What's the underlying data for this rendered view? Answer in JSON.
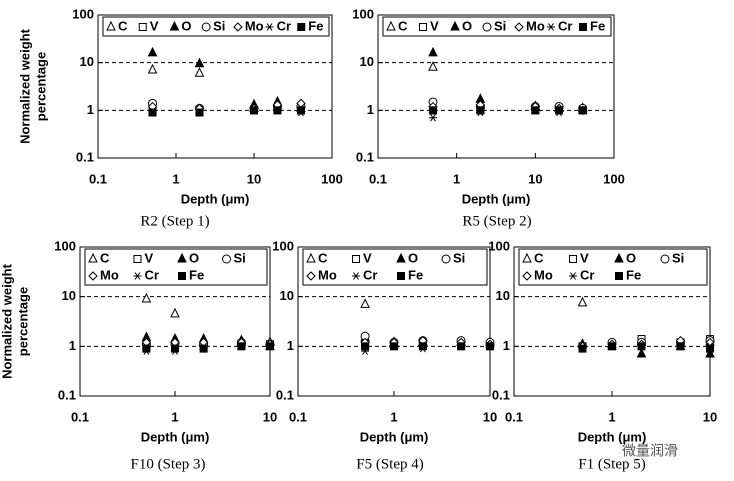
{
  "chart_data": [
    {
      "type": "scatter",
      "caption": "R2 (Step 1)",
      "xlabel": "Depth (μm)",
      "ylabel": [
        "Normalized weight",
        "percentage"
      ],
      "log_x": true,
      "log_y": true,
      "xlim": [
        0.1,
        100
      ],
      "ylim": [
        0.1,
        100
      ],
      "xticks": [
        0.1,
        1,
        10,
        100
      ],
      "yticks": [
        0.1,
        1,
        10,
        100
      ],
      "reference_lines": [
        1,
        10
      ],
      "x": [
        0.5,
        2,
        10,
        20,
        40
      ],
      "series": [
        {
          "name": "C",
          "color": "#000000",
          "marker": "triangle-open",
          "values": [
            7,
            6,
            1.1,
            1.2,
            1.1
          ]
        },
        {
          "name": "V",
          "color": "#000000",
          "marker": "square-open",
          "values": [
            1,
            1,
            1,
            1,
            1
          ]
        },
        {
          "name": "O",
          "color": "#000000",
          "marker": "triangle-filled",
          "values": [
            16,
            9.5,
            1.3,
            1.5,
            1.3
          ]
        },
        {
          "name": "Si",
          "color": "#000000",
          "marker": "circle-open",
          "values": [
            1.4,
            1.1,
            1.1,
            1.2,
            1.2
          ]
        },
        {
          "name": "Mo",
          "color": "#000000",
          "marker": "diamond-open",
          "values": [
            1.2,
            1.1,
            1.1,
            1.3,
            1.4
          ]
        },
        {
          "name": "Cr",
          "color": "#000000",
          "marker": "asterisk",
          "values": [
            0.9,
            0.9,
            1,
            1,
            0.9
          ]
        },
        {
          "name": "Fe",
          "color": "#000000",
          "marker": "square-filled",
          "values": [
            0.9,
            0.9,
            1,
            1,
            1
          ]
        }
      ]
    },
    {
      "type": "scatter",
      "caption": "R5 (Step 2)",
      "xlabel": "Depth (μm)",
      "log_x": true,
      "log_y": true,
      "xlim": [
        0.1,
        100
      ],
      "ylim": [
        0.1,
        100
      ],
      "xticks": [
        0.1,
        1,
        10,
        100
      ],
      "yticks": [
        0.1,
        1,
        10,
        100
      ],
      "reference_lines": [
        1,
        10
      ],
      "x": [
        0.5,
        2,
        10,
        20,
        40
      ],
      "series": [
        {
          "name": "C",
          "color": "#000000",
          "marker": "triangle-open",
          "values": [
            8,
            1.3,
            1.2,
            1.1,
            1
          ]
        },
        {
          "name": "V",
          "color": "#000000",
          "marker": "square-open",
          "values": [
            1,
            1,
            1,
            1,
            1
          ]
        },
        {
          "name": "O",
          "color": "#000000",
          "marker": "triangle-filled",
          "values": [
            16,
            1.7,
            1.2,
            1.1,
            1.1
          ]
        },
        {
          "name": "Si",
          "color": "#000000",
          "marker": "circle-open",
          "values": [
            1.5,
            1.2,
            1.2,
            1.2,
            1.1
          ]
        },
        {
          "name": "Mo",
          "color": "#000000",
          "marker": "diamond-open",
          "values": [
            1.2,
            1.3,
            1.2,
            1.1,
            1
          ]
        },
        {
          "name": "Cr",
          "color": "#000000",
          "marker": "asterisk",
          "values": [
            0.7,
            0.9,
            1,
            0.9,
            1
          ]
        },
        {
          "name": "Fe",
          "color": "#000000",
          "marker": "square-filled",
          "values": [
            1,
            1,
            1,
            1,
            1
          ]
        }
      ]
    },
    {
      "type": "scatter",
      "caption": "F10 (Step 3)",
      "xlabel": "Depth (μm)",
      "ylabel": [
        "Normalized weight",
        "percentage"
      ],
      "log_x": true,
      "log_y": true,
      "xlim": [
        0.1,
        10
      ],
      "ylim": [
        0.1,
        100
      ],
      "xticks": [
        0.1,
        1,
        10
      ],
      "yticks": [
        0.1,
        1,
        10,
        100
      ],
      "reference_lines": [
        1,
        10
      ],
      "x": [
        0.5,
        1,
        2,
        5,
        10
      ],
      "series": [
        {
          "name": "C",
          "color": "#000000",
          "marker": "triangle-open",
          "values": [
            9,
            4.5,
            1.2,
            1.2,
            1.2
          ]
        },
        {
          "name": "V",
          "color": "#000000",
          "marker": "square-open",
          "values": [
            1,
            1,
            1,
            1.1,
            1.1
          ]
        },
        {
          "name": "O",
          "color": "#000000",
          "marker": "triangle-filled",
          "values": [
            1.5,
            1.4,
            1.4,
            1.3,
            1
          ]
        },
        {
          "name": "Si",
          "color": "#000000",
          "marker": "circle-open",
          "values": [
            1.1,
            1.1,
            1.1,
            1.2,
            1.1
          ]
        },
        {
          "name": "Mo",
          "color": "#000000",
          "marker": "diamond-open",
          "values": [
            1.2,
            1.2,
            1.2,
            1.2,
            1.1
          ]
        },
        {
          "name": "Cr",
          "color": "#000000",
          "marker": "asterisk",
          "values": [
            0.8,
            0.8,
            0.9,
            1,
            1
          ]
        },
        {
          "name": "Fe",
          "color": "#000000",
          "marker": "square-filled",
          "values": [
            0.9,
            0.9,
            0.9,
            1,
            1
          ]
        }
      ]
    },
    {
      "type": "scatter",
      "caption": "F5 (Step 4)",
      "xlabel": "Depth (μm)",
      "log_x": true,
      "log_y": true,
      "xlim": [
        0.1,
        10
      ],
      "ylim": [
        0.1,
        100
      ],
      "xticks": [
        0.1,
        1,
        10
      ],
      "yticks": [
        0.1,
        1,
        10,
        100
      ],
      "reference_lines": [
        1,
        10
      ],
      "x": [
        0.5,
        1,
        2,
        5,
        10
      ],
      "series": [
        {
          "name": "C",
          "color": "#000000",
          "marker": "triangle-open",
          "values": [
            7,
            1.1,
            1.2,
            1.2,
            1.2
          ]
        },
        {
          "name": "V",
          "color": "#000000",
          "marker": "square-open",
          "values": [
            1.1,
            1.1,
            1.1,
            1.1,
            1.1
          ]
        },
        {
          "name": "O",
          "color": "#000000",
          "marker": "triangle-filled",
          "values": [
            1.5,
            1.2,
            1.2,
            1.2,
            1.1
          ]
        },
        {
          "name": "Si",
          "color": "#000000",
          "marker": "circle-open",
          "values": [
            1.6,
            1.2,
            1.3,
            1.3,
            1.2
          ]
        },
        {
          "name": "Mo",
          "color": "#000000",
          "marker": "diamond-open",
          "values": [
            1.2,
            1.2,
            1.3,
            1.2,
            1.1
          ]
        },
        {
          "name": "Cr",
          "color": "#000000",
          "marker": "asterisk",
          "values": [
            0.8,
            1,
            0.9,
            1,
            1
          ]
        },
        {
          "name": "Fe",
          "color": "#000000",
          "marker": "square-filled",
          "values": [
            1,
            1,
            1,
            1,
            1
          ]
        }
      ]
    },
    {
      "type": "scatter",
      "caption": "F1 (Step 5)",
      "xlabel": "Depth (μm)",
      "log_x": true,
      "log_y": true,
      "xlim": [
        0.1,
        10
      ],
      "ylim": [
        0.1,
        100
      ],
      "xticks": [
        0.1,
        1,
        10
      ],
      "yticks": [
        0.1,
        1,
        10,
        100
      ],
      "reference_lines": [
        1,
        10
      ],
      "x": [
        0.5,
        1,
        2,
        5,
        10
      ],
      "series": [
        {
          "name": "C",
          "color": "#000000",
          "marker": "triangle-open",
          "values": [
            7.5,
            1.1,
            1.2,
            1.2,
            1.2
          ]
        },
        {
          "name": "V",
          "color": "#000000",
          "marker": "square-open",
          "values": [
            1,
            1.1,
            1.4,
            1.2,
            1.4
          ]
        },
        {
          "name": "O",
          "color": "#000000",
          "marker": "triangle-filled",
          "values": [
            1.1,
            1,
            0.7,
            1,
            0.7
          ]
        },
        {
          "name": "Si",
          "color": "#000000",
          "marker": "circle-open",
          "values": [
            1,
            1.2,
            1.2,
            1.2,
            1.3
          ]
        },
        {
          "name": "Mo",
          "color": "#000000",
          "marker": "diamond-open",
          "values": [
            1,
            1.1,
            1.1,
            1.3,
            1.2
          ]
        },
        {
          "name": "Cr",
          "color": "#000000",
          "marker": "asterisk",
          "values": [
            0.9,
            1,
            1,
            1,
            1
          ]
        },
        {
          "name": "Fe",
          "color": "#000000",
          "marker": "square-filled",
          "values": [
            0.9,
            1,
            1,
            1,
            0.9
          ]
        }
      ]
    }
  ],
  "watermark": "微量润滑"
}
